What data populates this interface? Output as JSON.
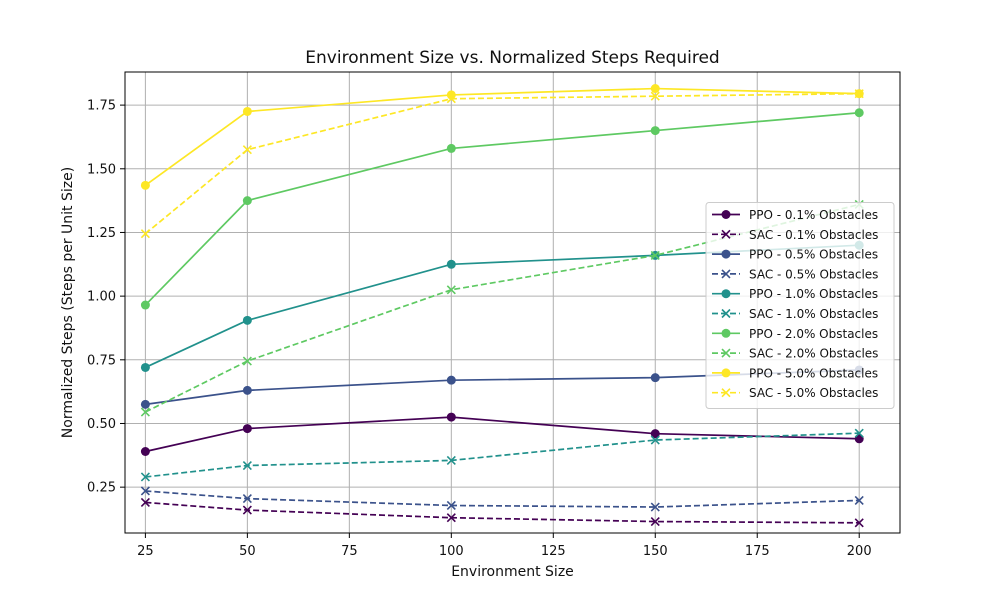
{
  "chart_data": {
    "type": "line",
    "title": "Environment Size vs. Normalized Steps Required",
    "xlabel": "Environment Size",
    "ylabel": "Normalized Steps (Steps per Unit Size)",
    "x": [
      25,
      50,
      100,
      150,
      200
    ],
    "xlim": [
      20,
      210
    ],
    "ylim": [
      0.07,
      1.88
    ],
    "xticks": [
      25,
      50,
      75,
      100,
      125,
      150,
      175,
      200
    ],
    "yticks": [
      0.25,
      0.5,
      0.75,
      1.0,
      1.25,
      1.5,
      1.75
    ],
    "ytick_labels": [
      "0.25",
      "0.50",
      "0.75",
      "1.00",
      "1.25",
      "1.50",
      "1.75"
    ],
    "grid": true,
    "legend_position": "center-right",
    "series": [
      {
        "name": "PPO - 0.1% Obstacles",
        "color": "#440154",
        "style": "solid",
        "marker": "circle",
        "values": [
          0.39,
          0.48,
          0.525,
          0.46,
          0.44
        ]
      },
      {
        "name": "SAC - 0.1% Obstacles",
        "color": "#440154",
        "style": "dashed",
        "marker": "x",
        "values": [
          0.19,
          0.16,
          0.13,
          0.115,
          0.11
        ]
      },
      {
        "name": "PPO - 0.5% Obstacles",
        "color": "#3b528b",
        "style": "solid",
        "marker": "circle",
        "values": [
          0.575,
          0.63,
          0.67,
          0.68,
          0.71
        ]
      },
      {
        "name": "SAC - 0.5% Obstacles",
        "color": "#3b528b",
        "style": "dashed",
        "marker": "x",
        "values": [
          0.235,
          0.205,
          0.178,
          0.172,
          0.198
        ]
      },
      {
        "name": "PPO - 1.0% Obstacles",
        "color": "#21918c",
        "style": "solid",
        "marker": "circle",
        "values": [
          0.72,
          0.905,
          1.125,
          1.16,
          1.2
        ]
      },
      {
        "name": "SAC - 1.0% Obstacles",
        "color": "#21918c",
        "style": "dashed",
        "marker": "x",
        "values": [
          0.29,
          0.335,
          0.355,
          0.435,
          0.462
        ]
      },
      {
        "name": "PPO - 2.0% Obstacles",
        "color": "#5ec962",
        "style": "solid",
        "marker": "circle",
        "values": [
          0.965,
          1.375,
          1.58,
          1.65,
          1.72
        ]
      },
      {
        "name": "SAC - 2.0% Obstacles",
        "color": "#5ec962",
        "style": "dashed",
        "marker": "x",
        "values": [
          0.545,
          0.745,
          1.025,
          1.16,
          1.36
        ]
      },
      {
        "name": "PPO - 5.0% Obstacles",
        "color": "#fde725",
        "style": "solid",
        "marker": "circle",
        "values": [
          1.435,
          1.725,
          1.79,
          1.815,
          1.795
        ]
      },
      {
        "name": "SAC - 5.0% Obstacles",
        "color": "#fde725",
        "style": "dashed",
        "marker": "x",
        "values": [
          1.245,
          1.575,
          1.775,
          1.785,
          1.795
        ]
      }
    ]
  }
}
